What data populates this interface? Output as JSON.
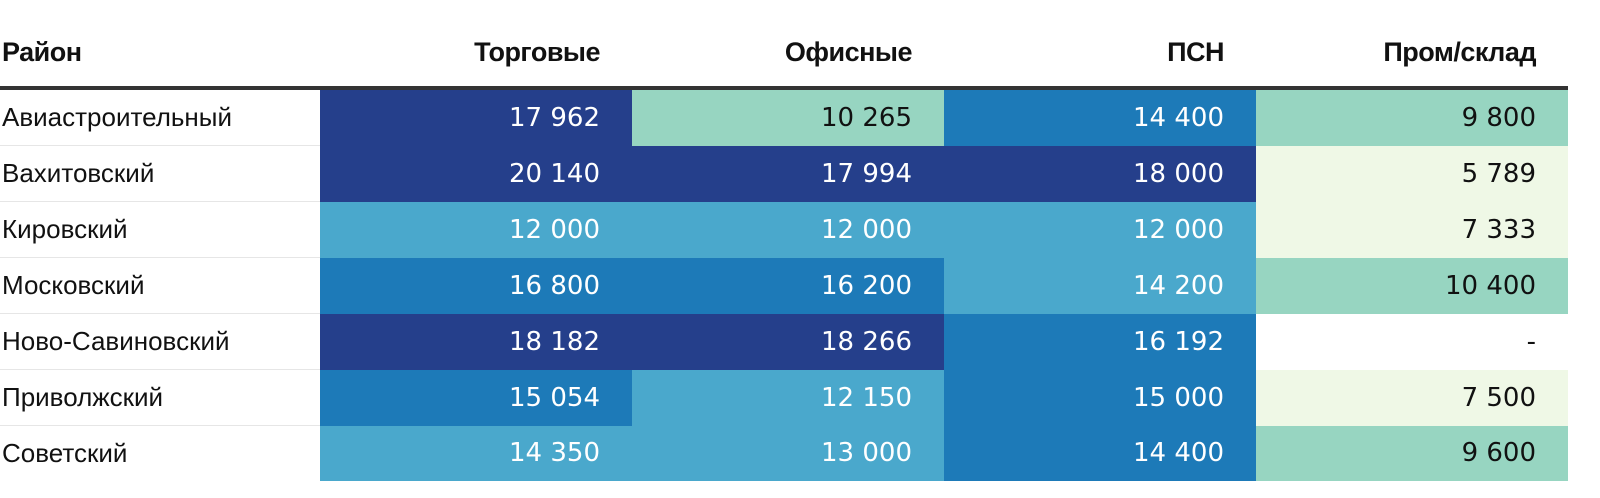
{
  "chart_data": {
    "type": "table",
    "columns": [
      "Район",
      "Торговые",
      "Офисные",
      "ПСН",
      "Пром/склад"
    ],
    "rows": [
      {
        "district": "Авиастроительный",
        "cells": [
          {
            "text": "17 962",
            "value": 17962,
            "bg": "#253f8b",
            "fg": "#ffffff"
          },
          {
            "text": "10 265",
            "value": 10265,
            "bg": "#97d5c1",
            "fg": "#111111"
          },
          {
            "text": "14 400",
            "value": 14400,
            "bg": "#1d7ab8",
            "fg": "#ffffff"
          },
          {
            "text": "9 800",
            "value": 9800,
            "bg": "#97d5c1",
            "fg": "#111111"
          }
        ]
      },
      {
        "district": "Вахитовский",
        "cells": [
          {
            "text": "20 140",
            "value": 20140,
            "bg": "#253f8b",
            "fg": "#ffffff"
          },
          {
            "text": "17 994",
            "value": 17994,
            "bg": "#253f8b",
            "fg": "#ffffff"
          },
          {
            "text": "18 000",
            "value": 18000,
            "bg": "#253f8b",
            "fg": "#ffffff"
          },
          {
            "text": "5 789",
            "value": 5789,
            "bg": "#eff8e6",
            "fg": "#111111"
          }
        ]
      },
      {
        "district": "Кировский",
        "cells": [
          {
            "text": "12 000",
            "value": 12000,
            "bg": "#4aa8cc",
            "fg": "#ffffff"
          },
          {
            "text": "12 000",
            "value": 12000,
            "bg": "#4aa8cc",
            "fg": "#ffffff"
          },
          {
            "text": "12 000",
            "value": 12000,
            "bg": "#4aa8cc",
            "fg": "#ffffff"
          },
          {
            "text": "7 333",
            "value": 7333,
            "bg": "#eff8e6",
            "fg": "#111111"
          }
        ]
      },
      {
        "district": "Московский",
        "cells": [
          {
            "text": "16 800",
            "value": 16800,
            "bg": "#1d7ab8",
            "fg": "#ffffff"
          },
          {
            "text": "16 200",
            "value": 16200,
            "bg": "#1d7ab8",
            "fg": "#ffffff"
          },
          {
            "text": "14 200",
            "value": 14200,
            "bg": "#4aa8cc",
            "fg": "#ffffff"
          },
          {
            "text": "10 400",
            "value": 10400,
            "bg": "#97d5c1",
            "fg": "#111111"
          }
        ]
      },
      {
        "district": "Ново-Савиновский",
        "cells": [
          {
            "text": "18 182",
            "value": 18182,
            "bg": "#253f8b",
            "fg": "#ffffff"
          },
          {
            "text": "18 266",
            "value": 18266,
            "bg": "#253f8b",
            "fg": "#ffffff"
          },
          {
            "text": "16 192",
            "value": 16192,
            "bg": "#1d7ab8",
            "fg": "#ffffff"
          },
          {
            "text": "-",
            "value": null,
            "bg": "#ffffff",
            "fg": "#111111"
          }
        ]
      },
      {
        "district": "Приволжский",
        "cells": [
          {
            "text": "15 054",
            "value": 15054,
            "bg": "#1d7ab8",
            "fg": "#ffffff"
          },
          {
            "text": "12 150",
            "value": 12150,
            "bg": "#4aa8cc",
            "fg": "#ffffff"
          },
          {
            "text": "15 000",
            "value": 15000,
            "bg": "#1d7ab8",
            "fg": "#ffffff"
          },
          {
            "text": "7 500",
            "value": 7500,
            "bg": "#eff8e6",
            "fg": "#111111"
          }
        ]
      },
      {
        "district": "Советский",
        "cells": [
          {
            "text": "14 350",
            "value": 14350,
            "bg": "#4aa8cc",
            "fg": "#ffffff"
          },
          {
            "text": "13 000",
            "value": 13000,
            "bg": "#4aa8cc",
            "fg": "#ffffff"
          },
          {
            "text": "14 400",
            "value": 14400,
            "bg": "#1d7ab8",
            "fg": "#ffffff"
          },
          {
            "text": "9 600",
            "value": 9600,
            "bg": "#97d5c1",
            "fg": "#111111"
          }
        ]
      }
    ]
  }
}
